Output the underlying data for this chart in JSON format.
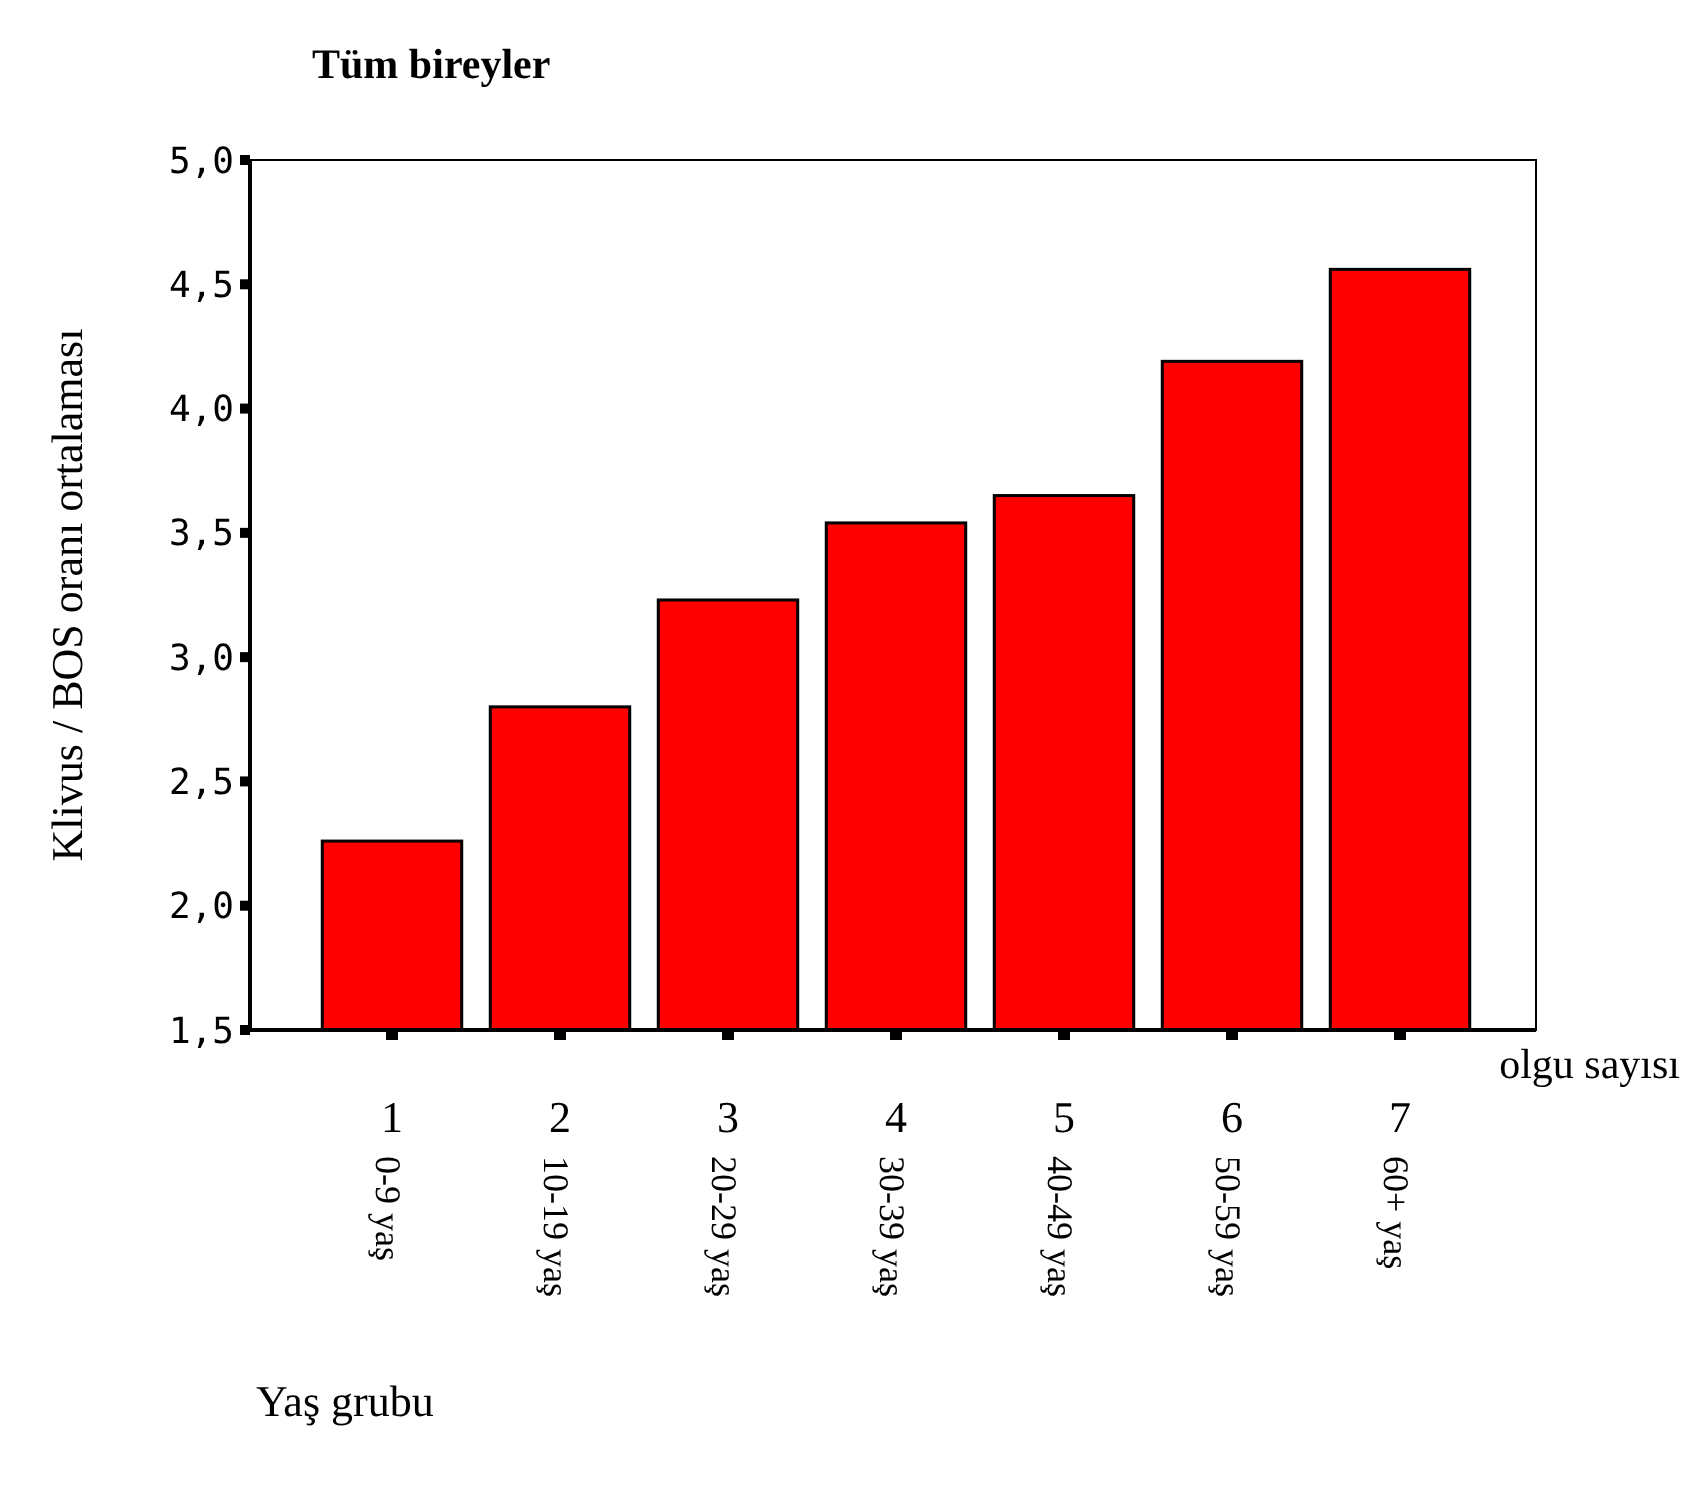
{
  "chart_data": {
    "type": "bar",
    "title": "Tüm bireyler",
    "xlabel": "Yaş grubu",
    "ylabel": "Klivus / BOS oranı ortalaması",
    "categories": [
      "0-9 yaş",
      "10-19 yaş",
      "20-29 yaş",
      "30-39 yaş",
      "40-49 yaş",
      "50-59 yaş",
      "60+ yaş"
    ],
    "values": [
      2.26,
      2.8,
      3.23,
      3.54,
      3.65,
      4.19,
      4.56
    ],
    "color": "#ff0000",
    "ylim": [
      1.5,
      5
    ],
    "yticks": [
      {
        "value": 1.5,
        "label": "1,5"
      },
      {
        "value": 2,
        "label": "2,0"
      },
      {
        "value": 2.5,
        "label": "2,5"
      },
      {
        "value": 3,
        "label": "3,0"
      },
      {
        "value": 3.5,
        "label": "3,5"
      },
      {
        "value": 4,
        "label": "4,0"
      },
      {
        "value": 4.5,
        "label": "4,5"
      },
      {
        "value": 5,
        "label": "5,0"
      }
    ],
    "grid": false,
    "annotations": [
      "1",
      "2",
      "3",
      "4",
      "5",
      "6",
      "7",
      "olgu sayısı"
    ]
  }
}
